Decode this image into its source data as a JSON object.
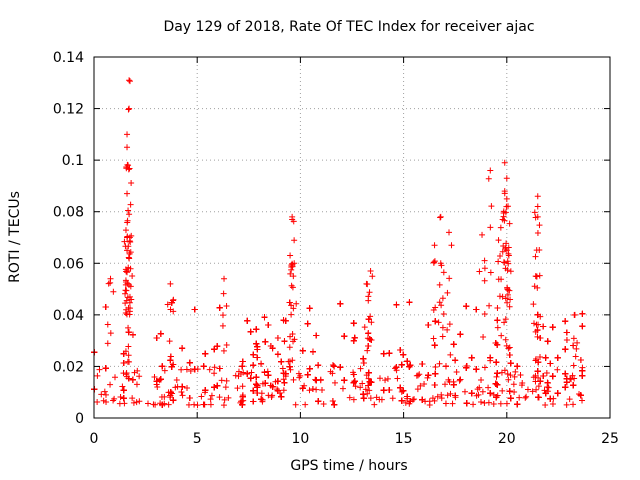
{
  "chart_data": {
    "type": "scatter",
    "title": "Day 129 of 2018, Rate Of TEC Index for receiver ajac",
    "xlabel": "GPS time / hours",
    "ylabel": "ROTI / TECUs",
    "xlim": [
      0,
      25
    ],
    "ylim": [
      0,
      0.14
    ],
    "xticks": [
      0,
      5,
      10,
      15,
      20,
      25
    ],
    "xtick_labels": [
      "0",
      "5",
      "10",
      "15",
      "20",
      "25"
    ],
    "yticks": [
      0,
      0.02,
      0.04,
      0.06,
      0.08,
      0.1,
      0.12,
      0.14
    ],
    "ytick_labels": [
      "0",
      "0.02",
      "0.04",
      "0.06",
      "0.08",
      "0.1",
      "0.12",
      "0.14"
    ],
    "grid": true,
    "marker": "+",
    "color": "#ff0000",
    "x_range_of_data": [
      0,
      23.8
    ],
    "baseline_band": [
      0.005,
      0.02
    ],
    "peaks": [
      {
        "x": 1.7,
        "y": 0.131
      },
      {
        "x": 1.7,
        "y": 0.12
      },
      {
        "x": 1.6,
        "y": 0.11
      },
      {
        "x": 1.6,
        "y": 0.105
      },
      {
        "x": 1.65,
        "y": 0.098
      },
      {
        "x": 1.6,
        "y": 0.087
      },
      {
        "x": 1.7,
        "y": 0.079
      },
      {
        "x": 1.6,
        "y": 0.07
      },
      {
        "x": 1.6,
        "y": 0.065
      },
      {
        "x": 1.6,
        "y": 0.057
      },
      {
        "x": 0.8,
        "y": 0.054
      },
      {
        "x": 3.7,
        "y": 0.052
      },
      {
        "x": 6.3,
        "y": 0.054
      },
      {
        "x": 9.6,
        "y": 0.078
      },
      {
        "x": 9.6,
        "y": 0.077
      },
      {
        "x": 9.5,
        "y": 0.063
      },
      {
        "x": 9.7,
        "y": 0.06
      },
      {
        "x": 13.4,
        "y": 0.057
      },
      {
        "x": 13.2,
        "y": 0.052
      },
      {
        "x": 16.8,
        "y": 0.078
      },
      {
        "x": 16.5,
        "y": 0.067
      },
      {
        "x": 17.2,
        "y": 0.072
      },
      {
        "x": 16.8,
        "y": 0.06
      },
      {
        "x": 18.8,
        "y": 0.071
      },
      {
        "x": 19.2,
        "y": 0.096
      },
      {
        "x": 19.9,
        "y": 0.099
      },
      {
        "x": 20.0,
        "y": 0.093
      },
      {
        "x": 19.9,
        "y": 0.088
      },
      {
        "x": 20.0,
        "y": 0.085
      },
      {
        "x": 19.8,
        "y": 0.077
      },
      {
        "x": 19.6,
        "y": 0.069
      },
      {
        "x": 20.0,
        "y": 0.065
      },
      {
        "x": 20.1,
        "y": 0.063
      },
      {
        "x": 21.5,
        "y": 0.086
      },
      {
        "x": 21.5,
        "y": 0.082
      },
      {
        "x": 21.5,
        "y": 0.078
      },
      {
        "x": 21.4,
        "y": 0.055
      },
      {
        "x": 23.3,
        "y": 0.04
      }
    ]
  }
}
